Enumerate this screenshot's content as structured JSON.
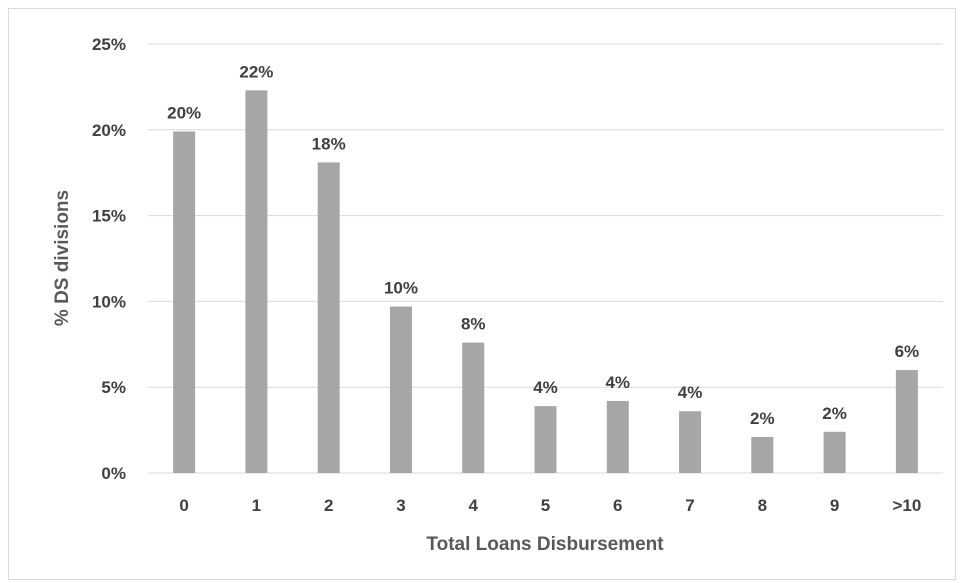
{
  "chart_data": {
    "type": "bar",
    "categories": [
      "0",
      "1",
      "2",
      "3",
      "4",
      "5",
      "6",
      "7",
      "8",
      "9",
      ">10"
    ],
    "values": [
      19.9,
      22.3,
      18.1,
      9.7,
      7.6,
      3.9,
      4.2,
      3.6,
      2.1,
      2.4,
      6.0
    ],
    "data_labels": [
      "20%",
      "22%",
      "18%",
      "10%",
      "8%",
      "4%",
      "4%",
      "4%",
      "2%",
      "2%",
      "6%"
    ],
    "title": "",
    "xlabel": "Total Loans Disbursement",
    "ylabel": "% DS divisions",
    "ylim": [
      0,
      25
    ],
    "yticks": [
      0,
      5,
      10,
      15,
      20,
      25
    ],
    "ytick_labels": [
      "0%",
      "5%",
      "10%",
      "15%",
      "20%",
      "25%"
    ],
    "grid": true,
    "legend": "none",
    "bar_color": "#a6a6a6",
    "grid_color": "#d9d9d9"
  }
}
